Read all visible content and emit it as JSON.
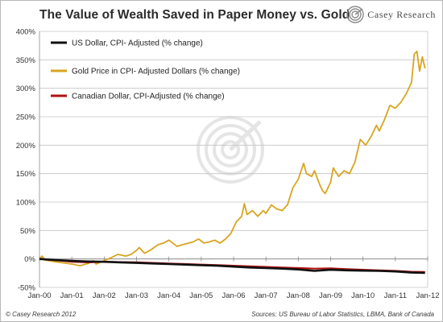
{
  "brand": {
    "name": "Casey Research",
    "logo_icon": "casey-research-swirl-logo"
  },
  "footer": {
    "copyright": "© Casey Research 2012",
    "sources": "Sources: US Bureau of Labor Statistics, LBMA, Bank of Canada"
  },
  "colors": {
    "usd": "#111111",
    "gold": "#d9a520",
    "cad": "#b01212",
    "grid": "#c4c4c4",
    "axis": "#888888"
  },
  "chart_data": {
    "type": "line",
    "title": "The Value of Wealth Saved in Paper Money vs. Gold",
    "xlabel": "",
    "ylabel": "",
    "x_ticks": [
      "Jan-00",
      "Jan-01",
      "Jan-02",
      "Jan-03",
      "Jan-04",
      "Jan-05",
      "Jan-06",
      "Jan-07",
      "Jan-08",
      "Jan-09",
      "Jan-10",
      "Jan-11",
      "Jan-12"
    ],
    "y_ticks": [
      "-50%",
      "0%",
      "50%",
      "100%",
      "150%",
      "200%",
      "250%",
      "300%",
      "350%",
      "400%"
    ],
    "ylim": [
      -50,
      400
    ],
    "xlim": [
      "Jan-00",
      "Jan-12"
    ],
    "grid": "horizontal",
    "legend_position": "top-left",
    "series": [
      {
        "name": "US Dollar, CPI- Adjusted (% change)",
        "color": "#111111",
        "points": [
          [
            "Jan-00",
            0
          ],
          [
            "Jul-00",
            -2
          ],
          [
            "Jan-01",
            -3.5
          ],
          [
            "Jul-01",
            -4.5
          ],
          [
            "Jan-02",
            -5
          ],
          [
            "Jul-02",
            -6
          ],
          [
            "Jan-03",
            -7
          ],
          [
            "Jul-03",
            -8
          ],
          [
            "Jan-04",
            -9
          ],
          [
            "Jul-04",
            -10
          ],
          [
            "Jan-05",
            -11
          ],
          [
            "Jul-05",
            -12
          ],
          [
            "Jan-06",
            -13.5
          ],
          [
            "Jul-06",
            -15
          ],
          [
            "Jan-07",
            -16
          ],
          [
            "Jul-07",
            -17
          ],
          [
            "Jan-08",
            -18.5
          ],
          [
            "Jul-08",
            -21
          ],
          [
            "Jan-09",
            -19
          ],
          [
            "Jul-09",
            -20
          ],
          [
            "Jan-10",
            -20.5
          ],
          [
            "Jul-10",
            -21
          ],
          [
            "Jan-11",
            -22
          ],
          [
            "Jul-11",
            -24
          ],
          [
            "Dec-11",
            -24.5
          ]
        ]
      },
      {
        "name": "Gold Price in CPI- Adjusted Dollars (% change)",
        "color": "#d9a520",
        "points": [
          [
            "Jan-00",
            0
          ],
          [
            "Feb-00",
            5
          ],
          [
            "Mar-00",
            -2
          ],
          [
            "Jul-00",
            -5
          ],
          [
            "Oct-00",
            -7
          ],
          [
            "Jan-01",
            -9
          ],
          [
            "Apr-01",
            -12
          ],
          [
            "Jul-01",
            -8
          ],
          [
            "Sep-01",
            -3
          ],
          [
            "Oct-01",
            -9
          ],
          [
            "Jan-02",
            -3
          ],
          [
            "Apr-02",
            3
          ],
          [
            "Jun-02",
            8
          ],
          [
            "Sep-02",
            5
          ],
          [
            "Nov-02",
            8
          ],
          [
            "Jan-03",
            15
          ],
          [
            "Feb-03",
            20
          ],
          [
            "Apr-03",
            10
          ],
          [
            "Jun-03",
            15
          ],
          [
            "Sep-03",
            25
          ],
          [
            "Nov-03",
            28
          ],
          [
            "Jan-04",
            33
          ],
          [
            "Apr-04",
            22
          ],
          [
            "Jun-04",
            25
          ],
          [
            "Oct-04",
            30
          ],
          [
            "Dec-04",
            35
          ],
          [
            "Feb-05",
            28
          ],
          [
            "Apr-05",
            30
          ],
          [
            "Jun-05",
            33
          ],
          [
            "Aug-05",
            28
          ],
          [
            "Oct-05",
            35
          ],
          [
            "Dec-05",
            45
          ],
          [
            "Feb-06",
            65
          ],
          [
            "Apr-06",
            75
          ],
          [
            "May-06",
            97
          ],
          [
            "Jun-06",
            78
          ],
          [
            "Aug-06",
            85
          ],
          [
            "Oct-06",
            75
          ],
          [
            "Dec-06",
            85
          ],
          [
            "Jan-07",
            80
          ],
          [
            "Mar-07",
            95
          ],
          [
            "May-07",
            88
          ],
          [
            "Jul-07",
            85
          ],
          [
            "Sep-07",
            95
          ],
          [
            "Nov-07",
            125
          ],
          [
            "Jan-08",
            140
          ],
          [
            "Mar-08",
            168
          ],
          [
            "Apr-08",
            150
          ],
          [
            "Jun-08",
            145
          ],
          [
            "Jul-08",
            155
          ],
          [
            "Sep-08",
            130
          ],
          [
            "Oct-08",
            120
          ],
          [
            "Nov-08",
            115
          ],
          [
            "Jan-09",
            135
          ],
          [
            "Feb-09",
            160
          ],
          [
            "Apr-09",
            145
          ],
          [
            "Jun-09",
            155
          ],
          [
            "Aug-09",
            150
          ],
          [
            "Oct-09",
            170
          ],
          [
            "Dec-09",
            210
          ],
          [
            "Feb-10",
            200
          ],
          [
            "Apr-10",
            215
          ],
          [
            "Jun-10",
            235
          ],
          [
            "Jul-10",
            225
          ],
          [
            "Sep-10",
            245
          ],
          [
            "Nov-10",
            270
          ],
          [
            "Jan-11",
            265
          ],
          [
            "Mar-11",
            275
          ],
          [
            "May-11",
            290
          ],
          [
            "Jul-11",
            310
          ],
          [
            "Aug-11",
            360
          ],
          [
            "Sep-11",
            365
          ],
          [
            "Oct-11",
            330
          ],
          [
            "Nov-11",
            355
          ],
          [
            "Dec-11",
            335
          ]
        ]
      },
      {
        "name": "Canadian Dollar, CPI-Adjusted (% change)",
        "color": "#b01212",
        "points": [
          [
            "Jan-00",
            0
          ],
          [
            "Jul-00",
            -2
          ],
          [
            "Jan-01",
            -5
          ],
          [
            "Jul-01",
            -6
          ],
          [
            "Jan-02",
            -5
          ],
          [
            "Jul-02",
            -5.5
          ],
          [
            "Jan-03",
            -6
          ],
          [
            "Jul-03",
            -7
          ],
          [
            "Jan-04",
            -8
          ],
          [
            "Jul-04",
            -9
          ],
          [
            "Jan-05",
            -10
          ],
          [
            "Jul-05",
            -11
          ],
          [
            "Jan-06",
            -12
          ],
          [
            "Jul-06",
            -13
          ],
          [
            "Jan-07",
            -14
          ],
          [
            "Jul-07",
            -15
          ],
          [
            "Jan-08",
            -16
          ],
          [
            "Jul-08",
            -17
          ],
          [
            "Jan-09",
            -16.5
          ],
          [
            "Jul-09",
            -18
          ],
          [
            "Jan-10",
            -19
          ],
          [
            "Jul-10",
            -20
          ],
          [
            "Jan-11",
            -21
          ],
          [
            "Jul-11",
            -22.5
          ],
          [
            "Dec-11",
            -23
          ]
        ]
      }
    ]
  }
}
